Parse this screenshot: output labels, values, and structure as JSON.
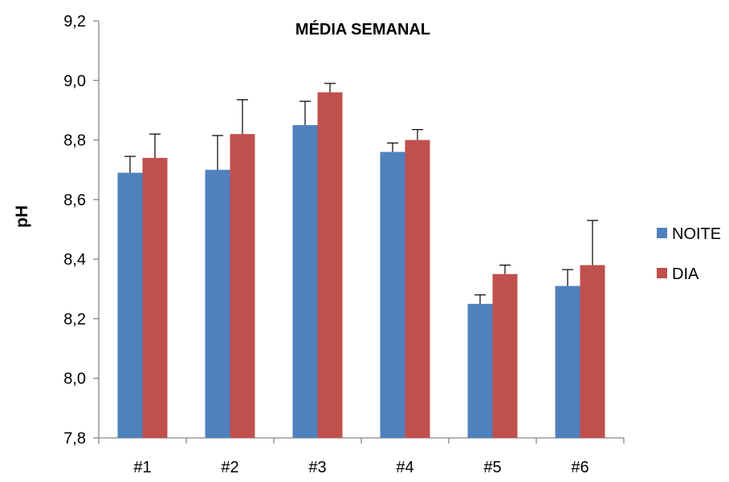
{
  "chart_data": {
    "type": "bar",
    "title": "MÉDIA SEMANAL",
    "xlabel": "",
    "ylabel": "pH",
    "ylim": [
      7.8,
      9.2
    ],
    "yticks": [
      "7,8",
      "8,0",
      "8,2",
      "8,4",
      "8,6",
      "8,8",
      "9,0",
      "9,2"
    ],
    "ytick_values": [
      7.8,
      8.0,
      8.2,
      8.4,
      8.6,
      8.8,
      9.0,
      9.2
    ],
    "categories": [
      "#1",
      "#2",
      "#3",
      "#4",
      "#5",
      "#6"
    ],
    "series": [
      {
        "name": "NOITE",
        "color": "#4F81BD",
        "values": [
          8.69,
          8.7,
          8.85,
          8.76,
          8.25,
          8.31
        ],
        "error": [
          0.055,
          0.115,
          0.08,
          0.03,
          0.03,
          0.055
        ]
      },
      {
        "name": "DIA",
        "color": "#C0504D",
        "values": [
          8.74,
          8.82,
          8.96,
          8.8,
          8.35,
          8.38
        ],
        "error": [
          0.08,
          0.115,
          0.03,
          0.035,
          0.03,
          0.15
        ]
      }
    ],
    "grid": false,
    "error_bars": true,
    "legend_position": "right"
  }
}
